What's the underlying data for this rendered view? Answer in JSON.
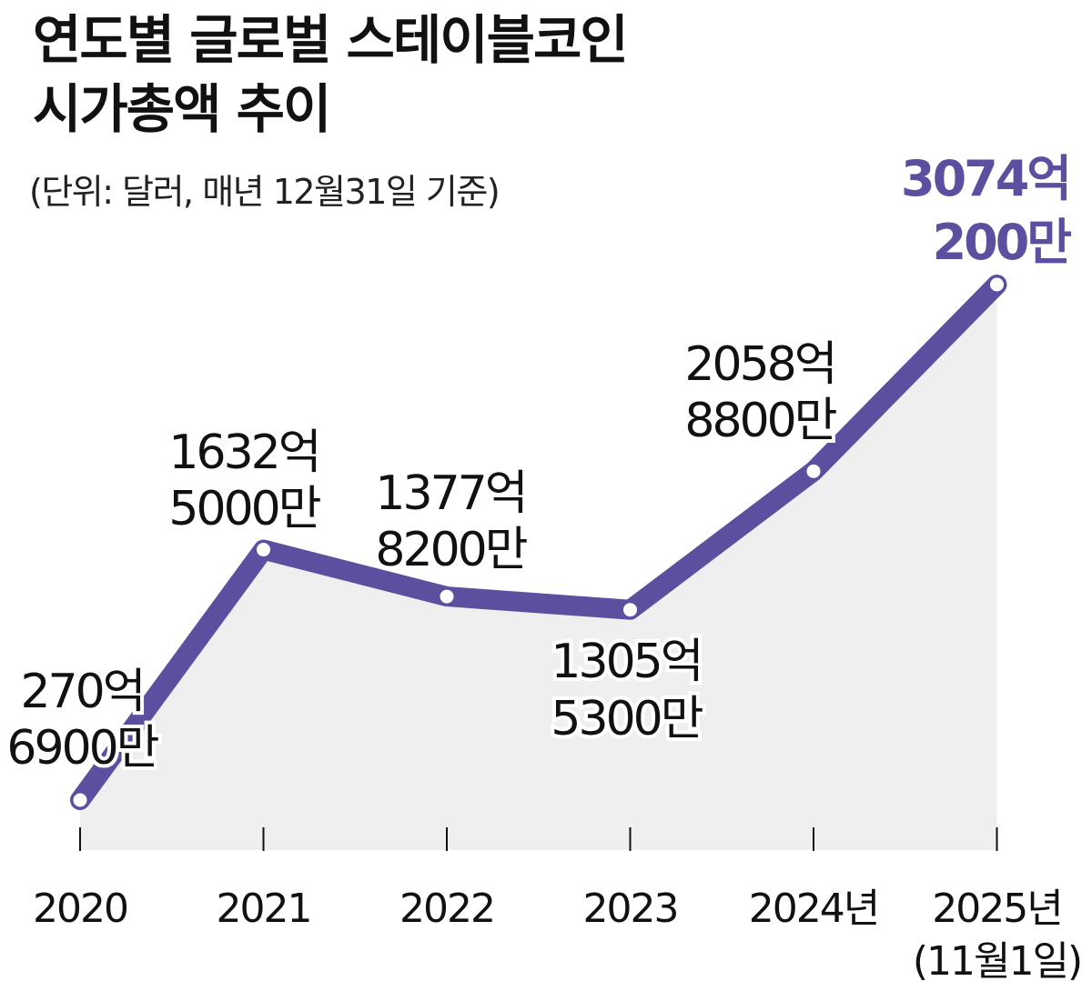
{
  "header": {
    "title_line1": "연도별 글로벌 스테이블코인",
    "title_line2": "시가총액 추이",
    "subtitle": "(단위: 달러, 매년 12월31일 기준)"
  },
  "colors": {
    "line": "#5c4f9f",
    "area": "#efefef",
    "highlight_label": "#5c4f9f",
    "text": "#111111"
  },
  "chart_data": {
    "type": "line",
    "title": "연도별 글로벌 스테이블코인 시가총액 추이",
    "subtitle": "(단위: 달러, 매년 12월31일 기준)",
    "unit": "달러",
    "categories": [
      "2020",
      "2021",
      "2022",
      "2023",
      "2024년",
      "2025년"
    ],
    "x_sublabels": [
      "",
      "",
      "",
      "",
      "",
      "(11월1일)"
    ],
    "values": [
      27069000000,
      163250000000,
      137782000000,
      130553000000,
      205888000000,
      307402000000
    ],
    "data_labels": [
      [
        "270억",
        "6900만"
      ],
      [
        "1632억",
        "5000만"
      ],
      [
        "1377억",
        "8200만"
      ],
      [
        "1305억",
        "5300만"
      ],
      [
        "2058억",
        "8800만"
      ],
      [
        "3074억",
        "200만"
      ]
    ],
    "highlight_index": 5,
    "ylim": [
      0,
      320000000000
    ],
    "grid": false,
    "legend": "none",
    "area_fill": true
  }
}
